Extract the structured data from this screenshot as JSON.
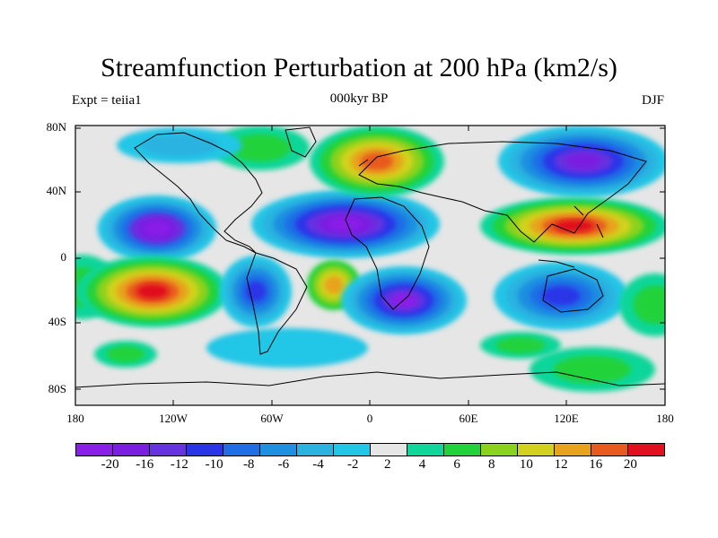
{
  "title": "Streamfunction Perturbation at 200 hPa (km2/s)",
  "left_label": "Expt = teiia1",
  "center_label": "000kyr BP",
  "right_label": "DJF",
  "lat_labels": [
    "80N",
    "40N",
    "0",
    "40S",
    "80S"
  ],
  "lon_labels": [
    "180",
    "120W",
    "60W",
    "0",
    "60E",
    "120E",
    "180"
  ],
  "colorbar": {
    "labels": [
      "-20",
      "-16",
      "-12",
      "-10",
      "-8",
      "-6",
      "-4",
      "-2",
      "2",
      "4",
      "6",
      "8",
      "10",
      "12",
      "16",
      "20"
    ],
    "colors": [
      "#8a1fe8",
      "#7a1fe0",
      "#6633e0",
      "#2a35e8",
      "#1f6ee6",
      "#1f8fe0",
      "#2bb2e0",
      "#22c6e6",
      "#e6e6e6",
      "#11d69a",
      "#22d23a",
      "#8ad21e",
      "#d2d21e",
      "#e8a21e",
      "#e85a1e",
      "#e0101e"
    ]
  },
  "colors": {
    "background": "#ffffff",
    "map_fill": "#e6e6e6",
    "coastline": "#000000"
  }
}
